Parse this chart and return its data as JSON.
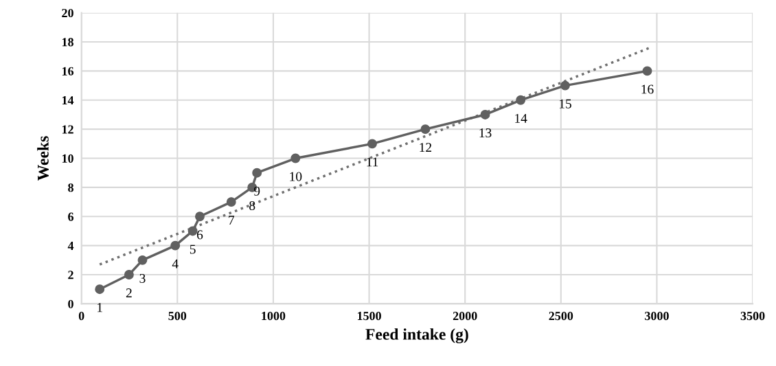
{
  "chart_data": {
    "type": "line",
    "xlabel": "Feed intake (g)",
    "ylabel": "Weeks",
    "xlim": [
      0,
      3500
    ],
    "xticks": [
      0,
      500,
      1000,
      1500,
      2000,
      2500,
      3000,
      3500
    ],
    "ylim": [
      0,
      20
    ],
    "yticks": [
      0,
      2,
      4,
      6,
      8,
      10,
      12,
      14,
      16,
      18,
      20
    ],
    "grid": true,
    "marker": "circle",
    "line_style": "solid",
    "data_labels": true,
    "series": [
      {
        "color": "#606060",
        "x": [
          95,
          248,
          318,
          489,
          580,
          617,
          781,
          890,
          915,
          1116,
          1516,
          1793,
          2105,
          2290,
          2522,
          2950
        ],
        "values": [
          1,
          2,
          3,
          4,
          5,
          6,
          7,
          8,
          9,
          10,
          11,
          12,
          13,
          14,
          15,
          16
        ]
      },
      {
        "type": "line",
        "color": "#707070",
        "marker": "none",
        "line_style": "dotted",
        "data_labels": false,
        "x": [
          95,
          2964
        ],
        "values": [
          2.7,
          17.6
        ]
      }
    ]
  }
}
